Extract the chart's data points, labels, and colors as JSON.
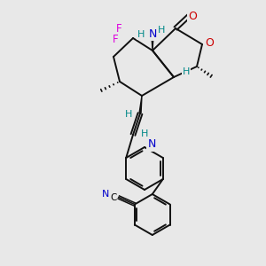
{
  "bg": "#e8e8e8",
  "bond_lw": 1.4,
  "figsize": [
    3.0,
    3.0
  ],
  "dpi": 100,
  "colors": {
    "F": "#dd00dd",
    "N": "#0000cc",
    "O": "#cc0000",
    "H": "#008888",
    "bond": "#111111",
    "CN_label": "#0000cc"
  }
}
